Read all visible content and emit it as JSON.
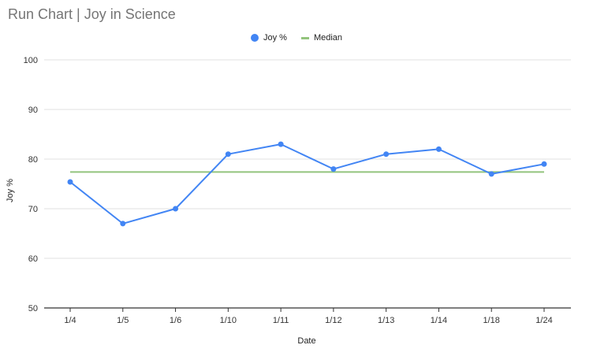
{
  "colors": {
    "joy": "#4285f4",
    "median": "#93c47d",
    "grid": "#e0e0e0",
    "axis": "#333333",
    "title": "#757575"
  },
  "chart_data": {
    "type": "line",
    "title": "Run Chart | Joy in Science",
    "xlabel": "Date",
    "ylabel": "Joy %",
    "categories": [
      "1/4",
      "1/5",
      "1/6",
      "1/10",
      "1/11",
      "1/12",
      "1/13",
      "1/14",
      "1/18",
      "1/24"
    ],
    "series": [
      {
        "name": "Joy %",
        "values": [
          75.4,
          67,
          70,
          81,
          83,
          78,
          81,
          82,
          77,
          79
        ]
      },
      {
        "name": "Median",
        "values": [
          77.4,
          77.4,
          77.4,
          77.4,
          77.4,
          77.4,
          77.4,
          77.4,
          77.4,
          77.4
        ]
      }
    ],
    "ylim": [
      50,
      100
    ],
    "yticks": [
      "50",
      "60",
      "70",
      "80",
      "90",
      "100"
    ],
    "grid": true,
    "legend_position": "top-center"
  }
}
